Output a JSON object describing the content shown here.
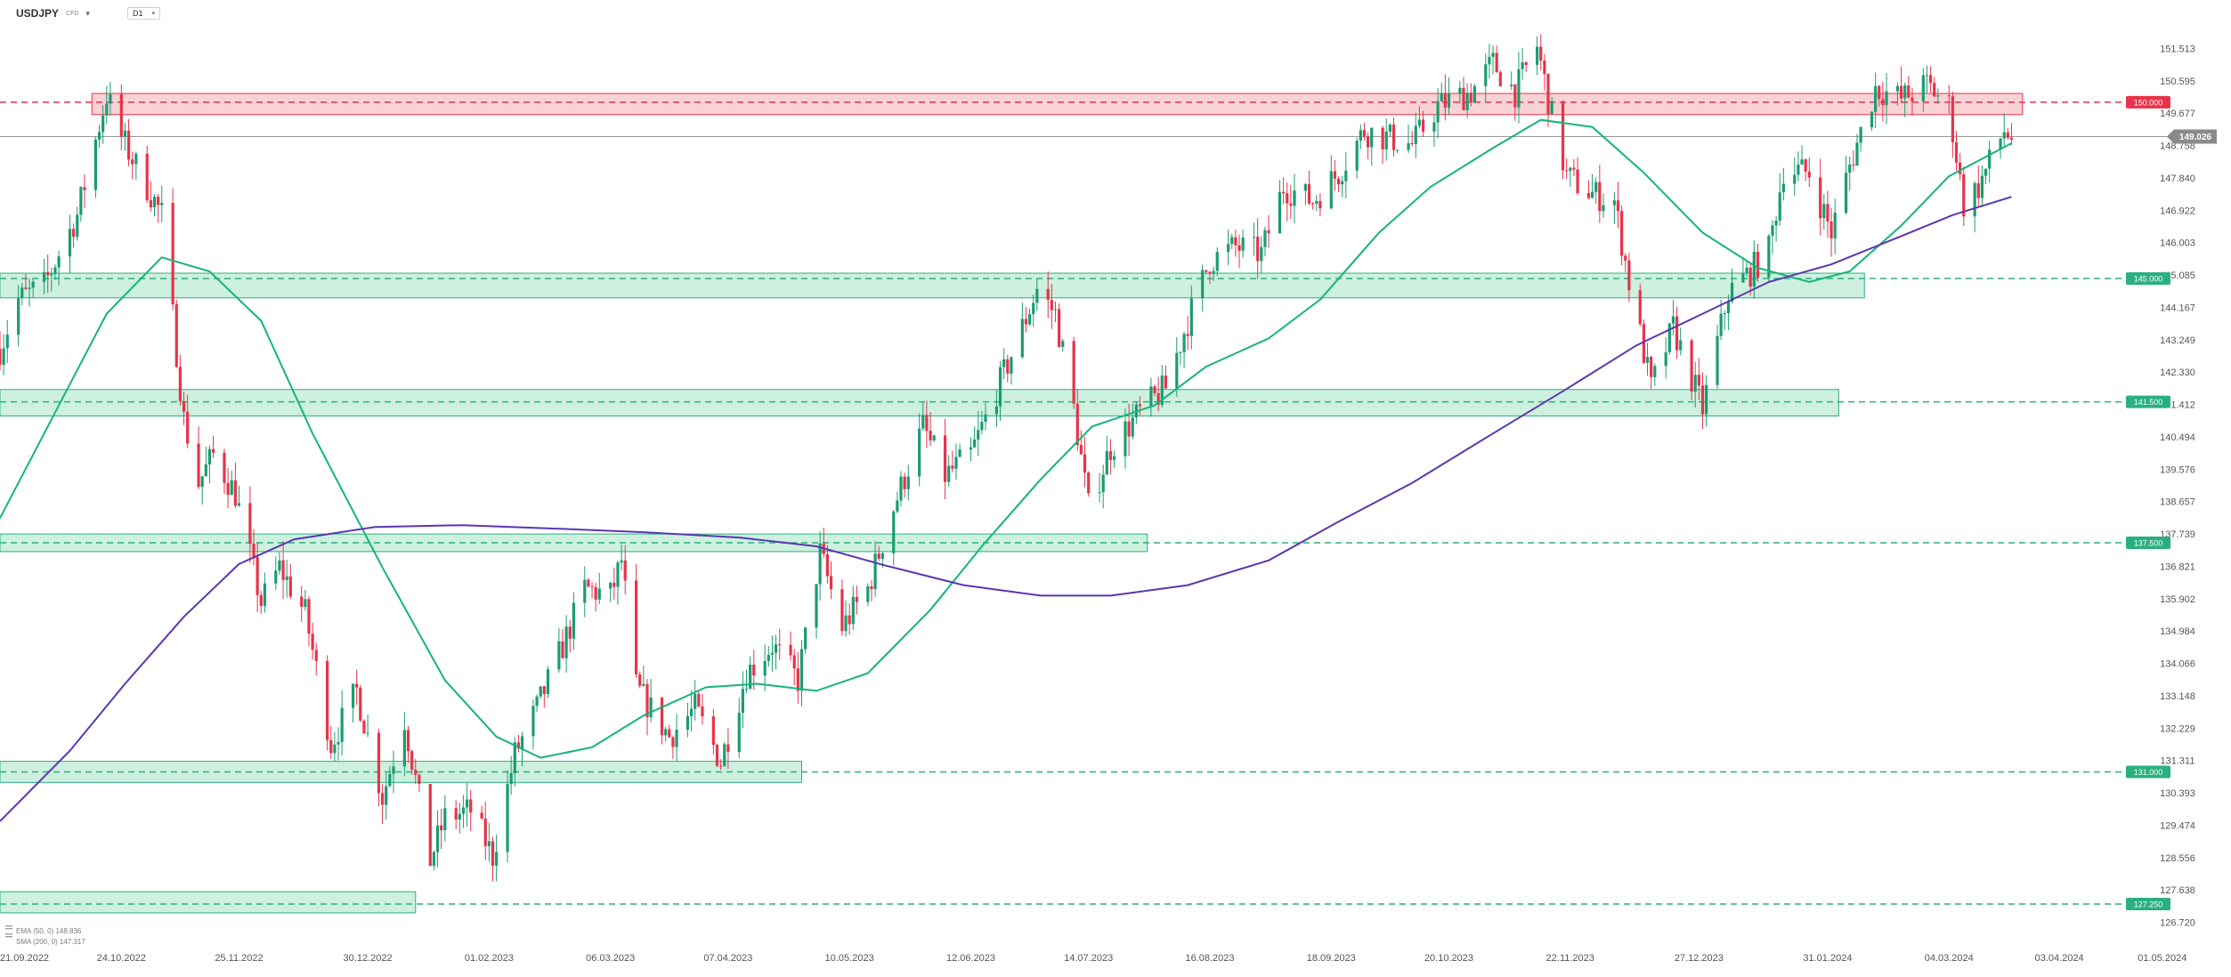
{
  "header": {
    "symbol": "USDJPY",
    "instrument_type": "CFD",
    "symbol_menu_icon": "caret-down-icon",
    "timeframe": "D1",
    "timeframe_menu_icon": "caret-down-icon"
  },
  "legend": {
    "ema": "EMA (50, 0) 148.836",
    "sma": "SMA (200, 0) 147.317",
    "icon": "list-icon"
  },
  "colors": {
    "up_candle": "#1a9c73",
    "down_candle": "#e8334a",
    "ema_line": "#15b47c",
    "sma_line": "#5b36b0",
    "support_zone_fill": "#c8eedb",
    "support_zone_stroke": "#2ab07f",
    "resistance_zone_fill": "#f7cdd0",
    "resistance_zone_stroke": "#e8334a",
    "current_price_badge": "#8a8a8a"
  },
  "chart_data": {
    "type": "candlestick",
    "symbol": "USDJPY",
    "timeframe": "D1",
    "ylim": [
      126.72,
      152.2
    ],
    "x_range": [
      "2022-09-21",
      "2024-05-10"
    ],
    "y_ticks": [
      "151.513",
      "150.595",
      "149.677",
      "148.758",
      "147.840",
      "146.922",
      "146.003",
      "145.085",
      "144.167",
      "143.249",
      "142.330",
      "141.412",
      "140.494",
      "139.576",
      "138.657",
      "137.739",
      "136.821",
      "135.902",
      "134.984",
      "134.066",
      "133.148",
      "132.229",
      "131.311",
      "130.393",
      "129.474",
      "128.556",
      "127.638",
      "126.720"
    ],
    "x_ticks": [
      "21.09.2022",
      "24.10.2022",
      "25.11.2022",
      "30.12.2022",
      "01.02.2023",
      "06.03.2023",
      "07.04.2023",
      "10.05.2023",
      "12.06.2023",
      "14.07.2023",
      "16.08.2023",
      "18.09.2023",
      "20.10.2023",
      "22.11.2023",
      "27.12.2023",
      "31.01.2024",
      "04.03.2024",
      "03.04.2024",
      "01.05.2024"
    ],
    "current_price": "149.026",
    "price_path": [
      [
        "2022-09-21",
        143.0
      ],
      [
        "2022-09-26",
        144.4
      ],
      [
        "2022-10-03",
        144.8
      ],
      [
        "2022-10-12",
        146.8
      ],
      [
        "2022-10-20",
        150.2
      ],
      [
        "2022-10-24",
        149.0
      ],
      [
        "2022-10-31",
        147.6
      ],
      [
        "2022-11-04",
        146.8
      ],
      [
        "2022-11-10",
        141.0
      ],
      [
        "2022-11-14",
        139.2
      ],
      [
        "2022-11-18",
        140.0
      ],
      [
        "2022-11-24",
        138.9
      ],
      [
        "2022-12-01",
        135.8
      ],
      [
        "2022-12-06",
        136.8
      ],
      [
        "2022-12-13",
        135.5
      ],
      [
        "2022-12-20",
        131.8
      ],
      [
        "2022-12-27",
        133.3
      ],
      [
        "2023-01-03",
        130.3
      ],
      [
        "2023-01-09",
        132.5
      ],
      [
        "2023-01-16",
        128.5
      ],
      [
        "2023-01-20",
        129.7
      ],
      [
        "2023-01-27",
        129.9
      ],
      [
        "2023-02-02",
        128.6
      ],
      [
        "2023-02-08",
        131.5
      ],
      [
        "2023-02-14",
        132.8
      ],
      [
        "2023-02-20",
        134.3
      ],
      [
        "2023-02-27",
        136.2
      ],
      [
        "2023-03-06",
        136.0
      ],
      [
        "2023-03-09",
        137.0
      ],
      [
        "2023-03-13",
        133.4
      ],
      [
        "2023-03-22",
        132.0
      ],
      [
        "2023-03-29",
        132.8
      ],
      [
        "2023-04-05",
        131.3
      ],
      [
        "2023-04-12",
        133.8
      ],
      [
        "2023-04-19",
        134.6
      ],
      [
        "2023-04-26",
        133.6
      ],
      [
        "2023-05-02",
        137.2
      ],
      [
        "2023-05-08",
        135.1
      ],
      [
        "2023-05-15",
        136.2
      ],
      [
        "2023-05-22",
        138.5
      ],
      [
        "2023-05-30",
        140.8
      ],
      [
        "2023-06-05",
        139.4
      ],
      [
        "2023-06-12",
        140.0
      ],
      [
        "2023-06-19",
        141.8
      ],
      [
        "2023-06-26",
        143.6
      ],
      [
        "2023-06-30",
        144.7
      ],
      [
        "2023-07-05",
        144.0
      ],
      [
        "2023-07-10",
        141.3
      ],
      [
        "2023-07-14",
        138.5
      ],
      [
        "2023-07-20",
        140.2
      ],
      [
        "2023-07-28",
        141.2
      ],
      [
        "2023-08-04",
        141.9
      ],
      [
        "2023-08-10",
        143.8
      ],
      [
        "2023-08-16",
        145.5
      ],
      [
        "2023-08-23",
        145.9
      ],
      [
        "2023-08-30",
        145.7
      ],
      [
        "2023-09-05",
        147.6
      ],
      [
        "2023-09-13",
        147.2
      ],
      [
        "2023-09-20",
        148.0
      ],
      [
        "2023-09-27",
        149.2
      ],
      [
        "2023-10-03",
        149.0
      ],
      [
        "2023-10-10",
        148.8
      ],
      [
        "2023-10-17",
        149.9
      ],
      [
        "2023-10-26",
        150.3
      ],
      [
        "2023-11-01",
        151.1
      ],
      [
        "2023-11-07",
        150.3
      ],
      [
        "2023-11-13",
        151.6
      ],
      [
        "2023-11-17",
        149.6
      ],
      [
        "2023-11-21",
        147.9
      ],
      [
        "2023-11-28",
        147.4
      ],
      [
        "2023-12-04",
        147.2
      ],
      [
        "2023-12-08",
        144.9
      ],
      [
        "2023-12-14",
        141.9
      ],
      [
        "2023-12-20",
        143.6
      ],
      [
        "2023-12-28",
        141.3
      ],
      [
        "2024-01-04",
        144.6
      ],
      [
        "2024-01-10",
        145.2
      ],
      [
        "2024-01-15",
        145.8
      ],
      [
        "2024-01-19",
        148.1
      ],
      [
        "2024-01-26",
        148.0
      ],
      [
        "2024-02-01",
        146.3
      ],
      [
        "2024-02-06",
        148.2
      ],
      [
        "2024-02-13",
        150.4
      ],
      [
        "2024-02-20",
        150.1
      ],
      [
        "2024-02-27",
        150.5
      ],
      [
        "2024-03-04",
        149.9
      ],
      [
        "2024-03-08",
        147.1
      ],
      [
        "2024-03-12",
        147.6
      ],
      [
        "2024-03-19",
        149.2
      ],
      [
        "2024-03-21",
        149.0
      ]
    ],
    "series": [
      {
        "name": "EMA (50, 0)",
        "last_value": 148.836,
        "points": [
          [
            "2022-09-21",
            138.2
          ],
          [
            "2022-10-05",
            141.0
          ],
          [
            "2022-10-20",
            144.0
          ],
          [
            "2022-11-04",
            145.6
          ],
          [
            "2022-11-17",
            145.2
          ],
          [
            "2022-12-01",
            143.8
          ],
          [
            "2022-12-15",
            140.6
          ],
          [
            "2023-01-03",
            136.8
          ],
          [
            "2023-01-20",
            133.6
          ],
          [
            "2023-02-03",
            132.0
          ],
          [
            "2023-02-15",
            131.4
          ],
          [
            "2023-03-01",
            131.7
          ],
          [
            "2023-03-15",
            132.6
          ],
          [
            "2023-04-01",
            133.4
          ],
          [
            "2023-04-15",
            133.5
          ],
          [
            "2023-05-01",
            133.3
          ],
          [
            "2023-05-15",
            133.8
          ],
          [
            "2023-06-01",
            135.6
          ],
          [
            "2023-06-15",
            137.4
          ],
          [
            "2023-07-01",
            139.3
          ],
          [
            "2023-07-15",
            140.8
          ],
          [
            "2023-08-01",
            141.4
          ],
          [
            "2023-08-15",
            142.5
          ],
          [
            "2023-09-01",
            143.3
          ],
          [
            "2023-09-15",
            144.4
          ],
          [
            "2023-10-01",
            146.3
          ],
          [
            "2023-10-15",
            147.6
          ],
          [
            "2023-11-01",
            148.7
          ],
          [
            "2023-11-14",
            149.5
          ],
          [
            "2023-11-28",
            149.3
          ],
          [
            "2023-12-12",
            148.0
          ],
          [
            "2023-12-28",
            146.3
          ],
          [
            "2024-01-12",
            145.3
          ],
          [
            "2024-01-26",
            144.9
          ],
          [
            "2024-02-06",
            145.2
          ],
          [
            "2024-02-20",
            146.5
          ],
          [
            "2024-03-04",
            147.9
          ],
          [
            "2024-03-21",
            148.836
          ]
        ]
      },
      {
        "name": "SMA (200, 0)",
        "last_value": 147.317,
        "points": [
          [
            "2022-09-21",
            129.6
          ],
          [
            "2022-10-10",
            131.6
          ],
          [
            "2022-10-25",
            133.5
          ],
          [
            "2022-11-10",
            135.4
          ],
          [
            "2022-11-25",
            136.9
          ],
          [
            "2022-12-10",
            137.6
          ],
          [
            "2023-01-01",
            137.95
          ],
          [
            "2023-01-25",
            138.0
          ],
          [
            "2023-02-20",
            137.9
          ],
          [
            "2023-03-15",
            137.8
          ],
          [
            "2023-04-10",
            137.65
          ],
          [
            "2023-05-01",
            137.4
          ],
          [
            "2023-05-20",
            136.85
          ],
          [
            "2023-06-10",
            136.3
          ],
          [
            "2023-07-01",
            136.0
          ],
          [
            "2023-07-20",
            136.0
          ],
          [
            "2023-08-10",
            136.3
          ],
          [
            "2023-09-01",
            137.0
          ],
          [
            "2023-09-20",
            138.1
          ],
          [
            "2023-10-10",
            139.2
          ],
          [
            "2023-11-01",
            140.6
          ],
          [
            "2023-11-20",
            141.8
          ],
          [
            "2023-12-10",
            143.1
          ],
          [
            "2023-12-28",
            144.0
          ],
          [
            "2024-01-15",
            144.9
          ],
          [
            "2024-02-01",
            145.4
          ],
          [
            "2024-02-20",
            146.2
          ],
          [
            "2024-03-05",
            146.8
          ],
          [
            "2024-03-21",
            147.317
          ]
        ]
      }
    ],
    "levels": [
      {
        "label": "150.000",
        "price": 150.0,
        "kind": "resistance",
        "zone": [
          149.65,
          150.25
        ],
        "zone_from": "2022-10-16",
        "zone_to": "2024-03-24"
      },
      {
        "label": "145.000",
        "price": 145.0,
        "kind": "support",
        "zone": [
          144.45,
          145.15
        ],
        "zone_from": "2022-09-21",
        "zone_to": "2024-02-10"
      },
      {
        "label": "141.500",
        "price": 141.5,
        "kind": "support",
        "zone": [
          141.1,
          141.85
        ],
        "zone_from": "2022-09-21",
        "zone_to": "2024-02-03"
      },
      {
        "label": "137.500",
        "price": 137.5,
        "kind": "support",
        "zone": [
          137.25,
          137.75
        ],
        "zone_from": "2022-09-21",
        "zone_to": "2023-07-30"
      },
      {
        "label": "131.000",
        "price": 131.0,
        "kind": "support",
        "zone": [
          130.7,
          131.3
        ],
        "zone_from": "2022-09-21",
        "zone_to": "2023-04-27"
      },
      {
        "label": "127.250",
        "price": 127.25,
        "kind": "support",
        "zone": [
          127.0,
          127.6
        ],
        "zone_from": "2022-09-21",
        "zone_to": "2023-01-12"
      }
    ]
  }
}
